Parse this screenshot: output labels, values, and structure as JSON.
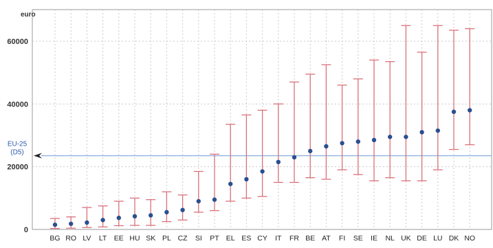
{
  "chart_data": {
    "type": "scatter",
    "ylabel": "euro",
    "ylim": [
      0,
      70000
    ],
    "yticks": [
      0,
      20000,
      40000,
      60000
    ],
    "grid": true,
    "reference_line": {
      "label_line1": "EU-25",
      "label_line2": "(D5)",
      "value": 23500
    },
    "categories": [
      "BG",
      "RO",
      "LV",
      "LT",
      "EE",
      "HU",
      "SK",
      "PL",
      "CZ",
      "SI",
      "PT",
      "EL",
      "ES",
      "CY",
      "IT",
      "FR",
      "BE",
      "AT",
      "FI",
      "SE",
      "IE",
      "NL",
      "UK",
      "DE",
      "LU",
      "DK",
      "NO"
    ],
    "series": [
      {
        "values": [
          1500,
          1800,
          2200,
          3000,
          3700,
          4200,
          4500,
          5500,
          6200,
          9000,
          9500,
          14500,
          16000,
          18500,
          21500,
          23000,
          25000,
          26500,
          27500,
          28000,
          28500,
          29500,
          29500,
          31000,
          31500,
          37500,
          38000
        ]
      },
      {
        "values": [
          300,
          400,
          600,
          800,
          1200,
          1300,
          1300,
          2500,
          3000,
          5500,
          6000,
          9000,
          10000,
          10500,
          15000,
          15000,
          16500,
          16000,
          19000,
          17500,
          15500,
          16500,
          15500,
          15500,
          19000,
          25500,
          27000
        ]
      },
      {
        "values": [
          3500,
          4000,
          7000,
          7500,
          9000,
          10000,
          9500,
          12000,
          11000,
          18500,
          24000,
          33500,
          36500,
          38000,
          40000,
          47000,
          49500,
          52500,
          46000,
          48000,
          54000,
          53500,
          65000,
          56500,
          65000,
          63500,
          64000
        ]
      }
    ],
    "colors": {
      "marker": "#2a4f8f",
      "error_bar": "#d9707a",
      "reference": "#7aa4dc",
      "grid": "#c8c8c8",
      "arrow": "#222222"
    }
  }
}
